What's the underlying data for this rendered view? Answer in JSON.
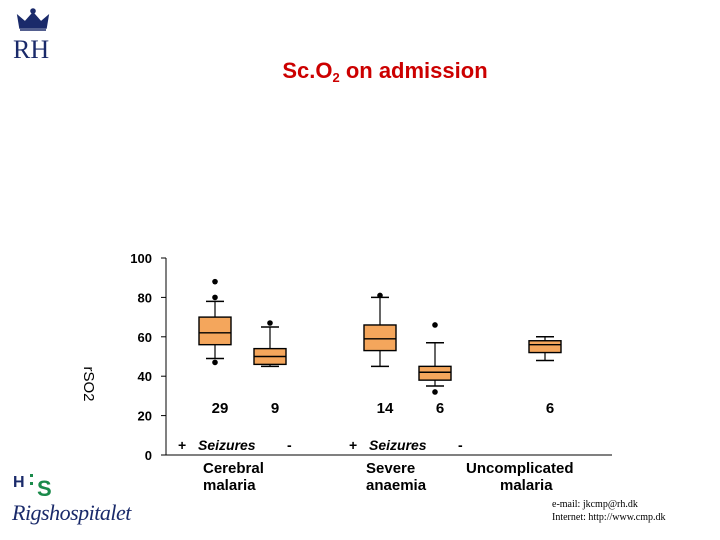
{
  "header": {
    "logo_text": "RH",
    "title_prefix": "Sc.O",
    "title_sub": "2",
    "title_suffix": " on admission"
  },
  "footer": {
    "hospital_name": "Rigshospitalet",
    "email_line": "e-mail: jkcmp@rh.dk",
    "internet_line": "Internet: http://www.cmp.dk"
  },
  "colors": {
    "box_fill": "#f4a65c",
    "title": "#cc0000",
    "ink": "#000000"
  },
  "chart_data": {
    "type": "box",
    "title": "Sc.O2 on admission",
    "ylabel": "rSO2",
    "ylim": [
      0,
      100
    ],
    "yticks": [
      "0",
      "20",
      "40",
      "60",
      "80",
      "100"
    ],
    "groups": [
      {
        "n": "29",
        "q1": 56,
        "median": 62,
        "q3": 70,
        "whisker_low": 49,
        "whisker_high": 78,
        "outliers": [
          88,
          80,
          47
        ]
      },
      {
        "n": "9",
        "q1": 46,
        "median": 50,
        "q3": 54,
        "whisker_low": 45,
        "whisker_high": 65,
        "outliers": [
          67
        ]
      },
      {
        "n": "14",
        "q1": 53,
        "median": 59,
        "q3": 66,
        "whisker_low": 45,
        "whisker_high": 80,
        "outliers": [
          81
        ]
      },
      {
        "n": "6",
        "q1": 38,
        "median": 42,
        "q3": 45,
        "whisker_low": 35,
        "whisker_high": 57,
        "outliers": [
          66,
          32
        ]
      },
      {
        "n": "6",
        "q1": 52,
        "median": 56,
        "q3": 58,
        "whisker_low": 48,
        "whisker_high": 60,
        "outliers": []
      }
    ],
    "seizure_labels": [
      {
        "plus": "+",
        "text": "Seizures",
        "minus": "-"
      },
      {
        "plus": "+",
        "text": "Seizures",
        "minus": "-"
      }
    ],
    "categories": [
      {
        "line1": "Cerebral",
        "line2": "malaria"
      },
      {
        "line1": "Severe",
        "line2": "anaemia"
      },
      {
        "line1": "Uncomplicated",
        "line2": "malaria"
      }
    ]
  }
}
